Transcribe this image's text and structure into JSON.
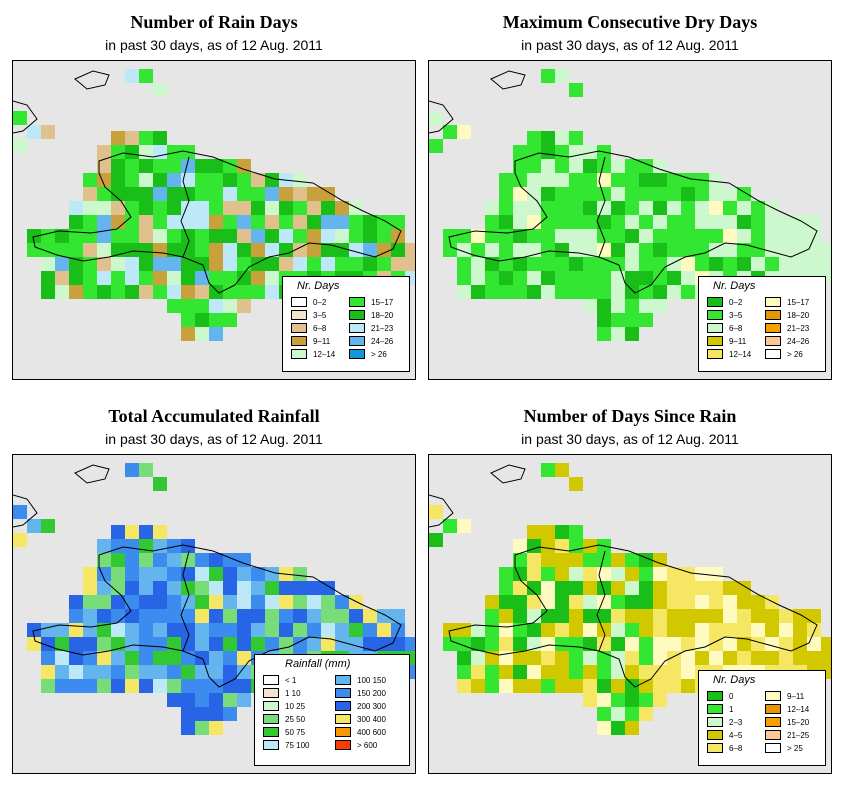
{
  "panels": [
    {
      "id": "rain-days",
      "title": "Number of Rain Days",
      "subtitle": "in past 30 days, as of  12 Aug. 2011",
      "legend": {
        "title": "Nr. Days",
        "items": [
          {
            "label": "0–2",
            "color": "#ffffff"
          },
          {
            "label": "3–5",
            "color": "#f2e4cf"
          },
          {
            "label": "6–8",
            "color": "#e0c08c"
          },
          {
            "label": "9–11",
            "color": "#c9a13c"
          },
          {
            "label": "12–14",
            "color": "#cdf7cd"
          },
          {
            "label": "15–17",
            "color": "#32e632"
          },
          {
            "label": "18–20",
            "color": "#19be19"
          },
          {
            "label": "21–23",
            "color": "#bde8f7"
          },
          {
            "label": "24–26",
            "color": "#64b4ee"
          },
          {
            "label": "> 26",
            "color": "#1496dc"
          }
        ]
      }
    },
    {
      "id": "max-dry-days",
      "title": "Maximum Consecutive Dry Days",
      "subtitle": "in past 30 days, as of  12 Aug. 2011",
      "legend": {
        "title": "Nr. Days",
        "items": [
          {
            "label": "0–2",
            "color": "#19be19"
          },
          {
            "label": "3–5",
            "color": "#32e632"
          },
          {
            "label": "6–8",
            "color": "#cdf7cd"
          },
          {
            "label": "9–11",
            "color": "#d2c800"
          },
          {
            "label": "12–14",
            "color": "#f5e664"
          },
          {
            "label": "15–17",
            "color": "#fffac0"
          },
          {
            "label": "18–20",
            "color": "#e69600"
          },
          {
            "label": "21–23",
            "color": "#f5a000"
          },
          {
            "label": "24–26",
            "color": "#fac896"
          },
          {
            "label": "> 26",
            "color": "#ffffff"
          }
        ]
      }
    },
    {
      "id": "total-rainfall",
      "title": "Total Accumulated Rainfall",
      "subtitle": "in past 30 days, as of  12 Aug. 2011",
      "legend": {
        "title": "Rainfall (mm)",
        "items": [
          {
            "label": "< 1",
            "color": "#ffffff"
          },
          {
            "label": "1    10",
            "color": "#f2e4cf"
          },
          {
            "label": "10    25",
            "color": "#cdf7cd"
          },
          {
            "label": "25    50",
            "color": "#78dc78"
          },
          {
            "label": "50    75",
            "color": "#32c832"
          },
          {
            "label": "75    100",
            "color": "#bde8f7"
          },
          {
            "label": "100   150",
            "color": "#64b4ee"
          },
          {
            "label": "150   200",
            "color": "#3c8cf0"
          },
          {
            "label": "200   300",
            "color": "#2864e6"
          },
          {
            "label": "300   400",
            "color": "#f5e664"
          },
          {
            "label": "400   600",
            "color": "#fa9600"
          },
          {
            "label": "> 600",
            "color": "#fa3c00"
          }
        ]
      }
    },
    {
      "id": "days-since-rain",
      "title": "Number of Days Since Rain",
      "subtitle": "in past 30 days, as of  12 Aug. 2011",
      "legend": {
        "title": "Nr. Days",
        "items": [
          {
            "label": "0",
            "color": "#19be19"
          },
          {
            "label": "1",
            "color": "#32e632"
          },
          {
            "label": "2–3",
            "color": "#cdf7cd"
          },
          {
            "label": "4–5",
            "color": "#d2c800"
          },
          {
            "label": "6–8",
            "color": "#f5e664"
          },
          {
            "label": "9–11",
            "color": "#fffac0"
          },
          {
            "label": "12–14",
            "color": "#e69600"
          },
          {
            "label": "15–20",
            "color": "#f5a000"
          },
          {
            "label": "21–25",
            "color": "#fac896"
          },
          {
            "label": "> 25",
            "color": "#ffffff"
          }
        ]
      }
    }
  ],
  "colors": {
    "map_background": "#e6e6e6",
    "outline": "#000000"
  }
}
